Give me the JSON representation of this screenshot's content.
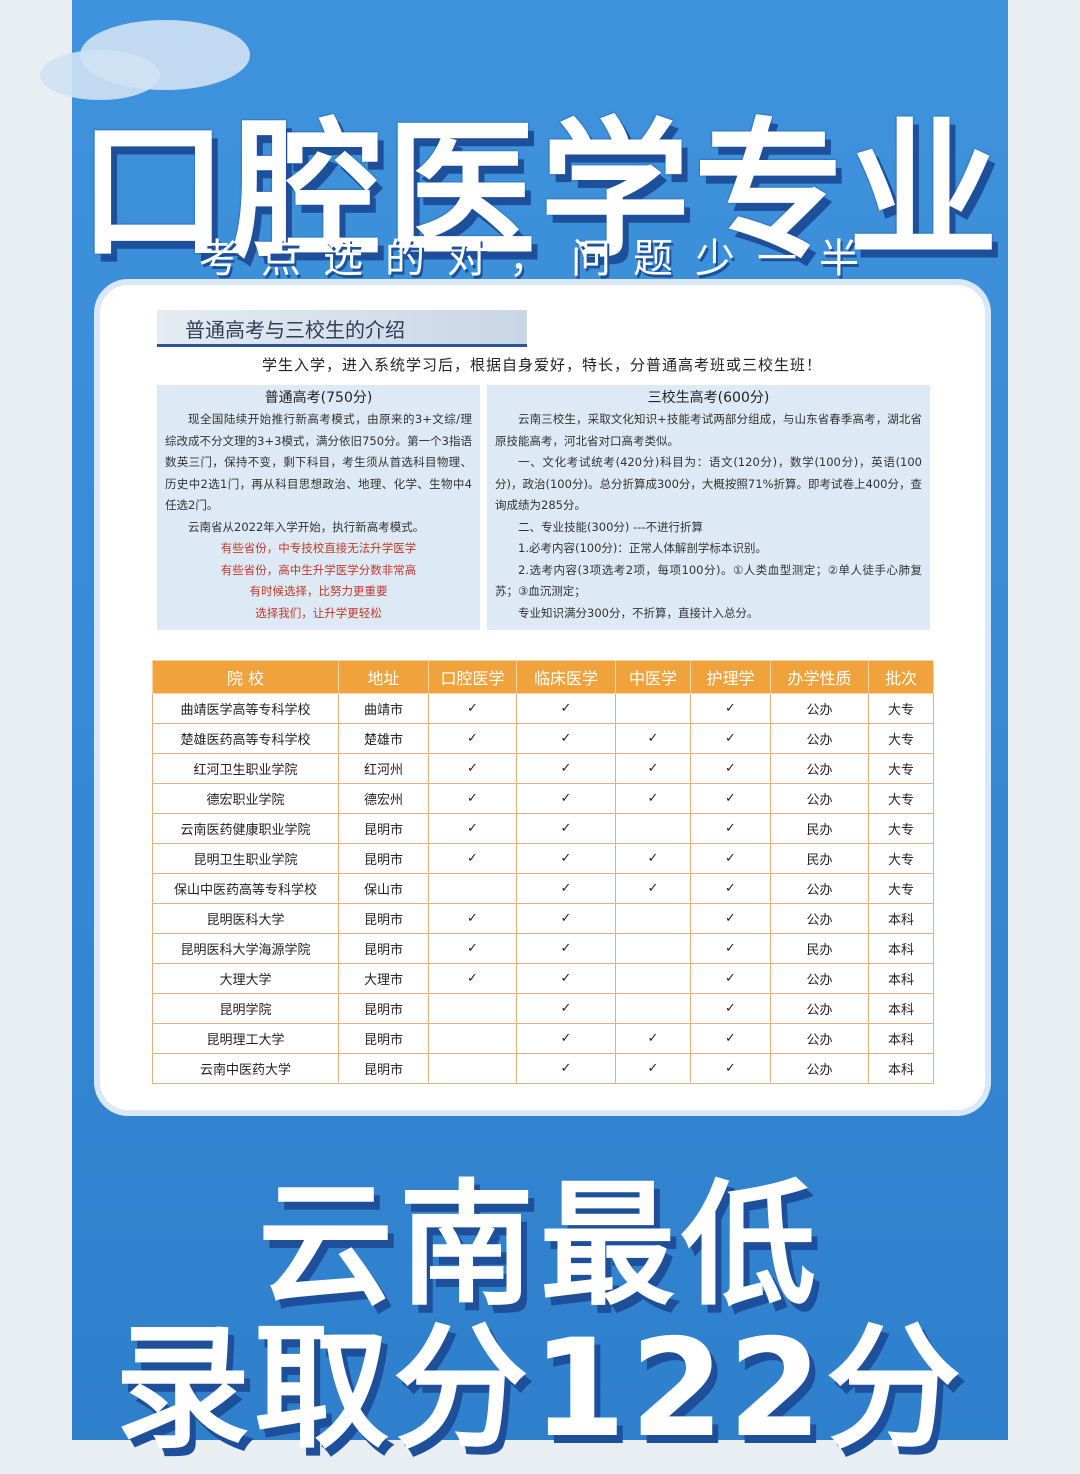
{
  "header": {
    "title": "口腔医学专业",
    "subtitle": "考点选的对，问题少一半"
  },
  "intro": {
    "heading": "普通高考与三校生的介绍",
    "text": "学生入学，进入系统学习后，根据自身爱好，特长，分普通高考班或三校生班！"
  },
  "boxes": [
    {
      "heading": "普通高考(750分)",
      "paragraphs": [
        "现全国陆续开始推行新高考模式，由原来的3+文综/理综改成不分文理的3+3模式，满分依旧750分。第一个3指语数英三门，保持不变，剩下科目，考生须从首选科目物理、历史中2选1门，再从科目思想政治、地理、化学、生物中4任选2门。",
        "云南省从2022年入学开始，执行新高考模式。"
      ],
      "highlights": [
        "有些省份，中专技校直接无法升学医学",
        "有些省份，高中生升学医学分数非常高",
        "有时候选择，比努力更重要",
        "选择我们，让升学更轻松"
      ]
    },
    {
      "heading": "三校生高考(600分)",
      "paragraphs": [
        "云南三校生，采取文化知识+技能考试两部分组成，与山东省春季高考，湖北省原技能高考，河北省对口高考类似。",
        "一、文化考试统考(420分)科目为：语文(120分)，数学(100分)，英语(100分)，政治(100分)。总分折算成300分，大概按照71%折算。即考试卷上400分，查询成绩为285分。",
        "二、专业技能(300分) ---不进行折算",
        "1.必考内容(100分)：正常人体解剖学标本识别。",
        "2.选考内容(3项选考2项，每项100分)。①人类血型测定；②单人徒手心肺复苏；③血沉测定；",
        "专业知识满分300分，不折算，直接计入总分。"
      ]
    }
  ],
  "table": {
    "columns": [
      "院 校",
      "地址",
      "口腔医学",
      "临床医学",
      "中医学",
      "护理学",
      "办学性质",
      "批次"
    ],
    "rows": [
      [
        "曲靖医学高等专科学校",
        "曲靖市",
        "✓",
        "✓",
        null,
        "✓",
        "公办",
        "大专"
      ],
      [
        "楚雄医药高等专科学校",
        "楚雄市",
        "✓",
        "✓",
        "✓",
        "✓",
        "公办",
        "大专"
      ],
      [
        "红河卫生职业学院",
        "红河州",
        "✓",
        "✓",
        "✓",
        "✓",
        "公办",
        "大专"
      ],
      [
        "德宏职业学院",
        "德宏州",
        "✓",
        "✓",
        "✓",
        "✓",
        "公办",
        "大专"
      ],
      [
        "云南医药健康职业学院",
        "昆明市",
        "✓",
        "✓",
        null,
        "✓",
        "民办",
        "大专"
      ],
      [
        "昆明卫生职业学院",
        "昆明市",
        "✓",
        "✓",
        "✓",
        "✓",
        "民办",
        "大专"
      ],
      [
        "保山中医药高等专科学校",
        "保山市",
        null,
        "✓",
        "✓",
        "✓",
        "公办",
        "大专"
      ],
      [
        "昆明医科大学",
        "昆明市",
        "✓",
        "✓",
        null,
        "✓",
        "公办",
        "本科"
      ],
      [
        "昆明医科大学海源学院",
        "昆明市",
        "✓",
        "✓",
        null,
        "✓",
        "民办",
        "本科"
      ],
      [
        "大理大学",
        "大理市",
        "✓",
        "✓",
        null,
        "✓",
        "公办",
        "本科"
      ],
      [
        "昆明学院",
        "昆明市",
        null,
        "✓",
        null,
        "✓",
        "公办",
        "本科"
      ],
      [
        "昆明理工大学",
        "昆明市",
        null,
        "✓",
        "✓",
        "✓",
        "公办",
        "本科"
      ],
      [
        "云南中医药大学",
        "昆明市",
        null,
        "✓",
        "✓",
        "✓",
        "公办",
        "本科"
      ]
    ]
  },
  "footer": {
    "line1": "云南最低",
    "line2": "录取分122分"
  }
}
